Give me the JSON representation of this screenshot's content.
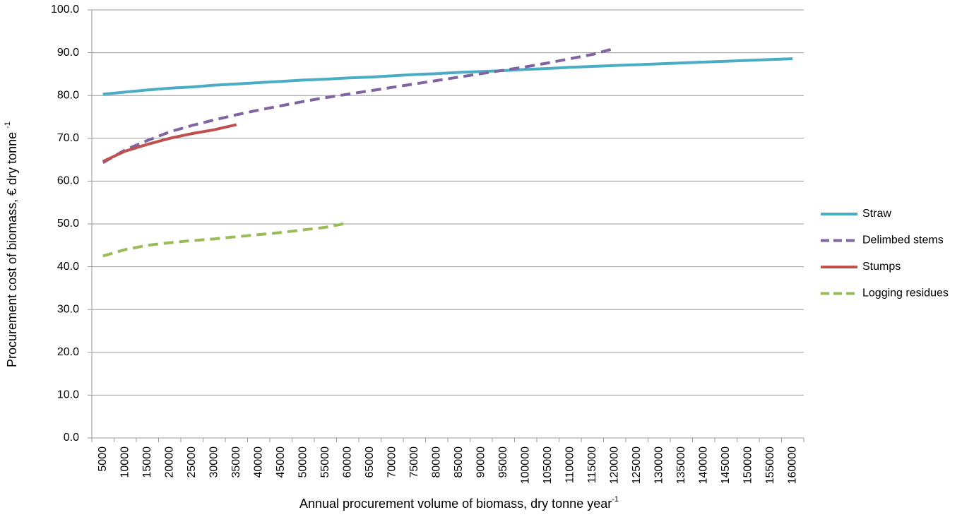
{
  "chart_data": {
    "type": "line",
    "y_label": "Procurement cost of biomass, € dry tonne ",
    "y_label_sup": "-1",
    "x_label": "Annual procurement volume of biomass, dry tonne  year",
    "x_label_sup": "-1",
    "categories": [
      "5000",
      "10000",
      "15000",
      "20000",
      "25000",
      "30000",
      "35000",
      "40000",
      "45000",
      "50000",
      "55000",
      "60000",
      "65000",
      "70000",
      "75000",
      "80000",
      "85000",
      "90000",
      "95000",
      "100000",
      "105000",
      "110000",
      "115000",
      "120000",
      "125000",
      "130000",
      "135000",
      "140000",
      "145000",
      "150000",
      "155000",
      "160000"
    ],
    "series": [
      {
        "name": "Straw",
        "color": "#4bacc6",
        "dashed": false,
        "values": [
          80.3,
          80.8,
          81.3,
          81.7,
          82.0,
          82.4,
          82.7,
          83.0,
          83.3,
          83.6,
          83.8,
          84.1,
          84.3,
          84.6,
          84.9,
          85.1,
          85.4,
          85.6,
          85.8,
          86.1,
          86.3,
          86.6,
          86.8,
          87.0,
          87.2,
          87.4,
          87.6,
          87.8,
          88.0,
          88.2,
          88.4,
          88.6
        ]
      },
      {
        "name": "Delimbed stems",
        "color": "#8064a2",
        "dashed": true,
        "values": [
          64.3,
          67.3,
          69.5,
          71.5,
          73.0,
          74.3,
          75.5,
          76.6,
          77.6,
          78.6,
          79.5,
          80.3,
          81.1,
          81.9,
          82.7,
          83.5,
          84.3,
          85.1,
          85.9,
          86.7,
          87.6,
          88.6,
          89.6,
          91.0,
          null,
          null,
          null,
          null,
          null,
          null,
          null,
          null
        ]
      },
      {
        "name": "Stumps",
        "color": "#c0504d",
        "dashed": false,
        "values": [
          64.6,
          67.0,
          68.6,
          70.0,
          71.1,
          72.0,
          73.2,
          null,
          null,
          null,
          null,
          null,
          null,
          null,
          null,
          null,
          null,
          null,
          null,
          null,
          null,
          null,
          null,
          null,
          null,
          null,
          null,
          null,
          null,
          null,
          null,
          null
        ]
      },
      {
        "name": "Logging residues",
        "color": "#9bbb59",
        "dashed": true,
        "values": [
          42.5,
          44.0,
          45.0,
          45.6,
          46.1,
          46.5,
          47.0,
          47.5,
          48.0,
          48.6,
          49.2,
          50.2,
          null,
          null,
          null,
          null,
          null,
          null,
          null,
          null,
          null,
          null,
          null,
          null,
          null,
          null,
          null,
          null,
          null,
          null,
          null,
          null
        ]
      }
    ],
    "ylim": [
      0,
      100
    ],
    "yticks": [
      {
        "value": 0,
        "label": "0.0"
      },
      {
        "value": 10,
        "label": "10.0"
      },
      {
        "value": 20,
        "label": "20.0"
      },
      {
        "value": 30,
        "label": "30.0"
      },
      {
        "value": 40,
        "label": "40.0"
      },
      {
        "value": 50,
        "label": "50.0"
      },
      {
        "value": 60,
        "label": "60.0"
      },
      {
        "value": 70,
        "label": "70.0"
      },
      {
        "value": 80,
        "label": "80.0"
      },
      {
        "value": 90,
        "label": "90.0"
      },
      {
        "value": 100,
        "label": "100.0"
      }
    ],
    "grid": true,
    "legend": "right"
  }
}
